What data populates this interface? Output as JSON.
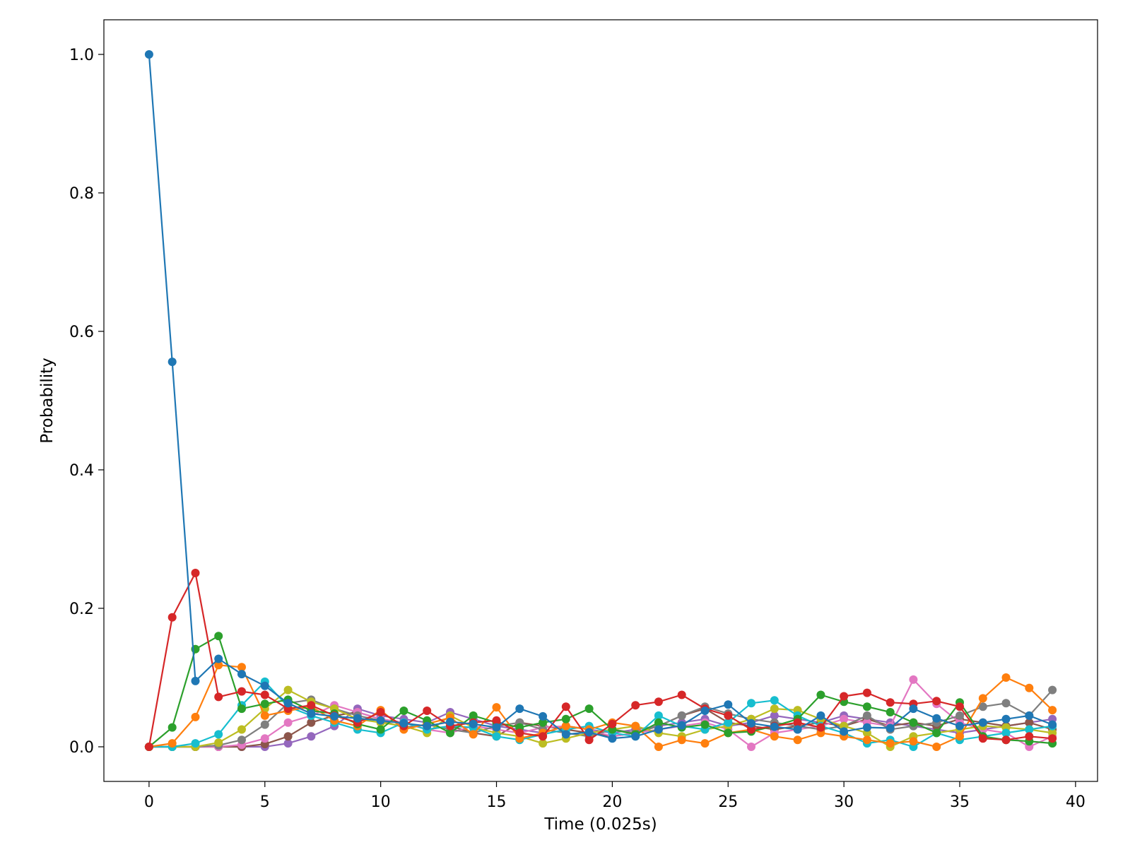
{
  "chart_data": {
    "type": "line",
    "xlabel": "Time (0.025s)",
    "ylabel": "Probability",
    "xlim": [
      -1.95,
      40.95
    ],
    "ylim": [
      -0.05,
      1.05
    ],
    "xticks": [
      0,
      5,
      10,
      15,
      20,
      25,
      30,
      35,
      40
    ],
    "xtick_labels": [
      "0",
      "5",
      "10",
      "15",
      "20",
      "25",
      "30",
      "35",
      "40"
    ],
    "yticks": [
      0.0,
      0.2,
      0.4,
      0.6,
      0.8,
      1.0
    ],
    "ytick_labels": [
      "0.0",
      "0.2",
      "0.4",
      "0.6",
      "0.8",
      "1.0"
    ],
    "grid": false,
    "legend": "none",
    "markers": true,
    "x": [
      0,
      1,
      2,
      3,
      4,
      5,
      6,
      7,
      8,
      9,
      10,
      11,
      12,
      13,
      14,
      15,
      16,
      17,
      18,
      19,
      20,
      21,
      22,
      23,
      24,
      25,
      26,
      27,
      28,
      29,
      30,
      31,
      32,
      33,
      34,
      35,
      36,
      37,
      38,
      39
    ],
    "series": [
      {
        "color": "#1f77b4",
        "values": [
          1.0,
          0.556,
          0.095,
          0.127,
          0.105,
          0.088,
          0.063,
          0.048,
          0.044,
          0.041,
          0.038,
          0.034,
          0.03,
          0.036,
          0.033,
          0.028,
          0.055,
          0.044,
          0.018,
          0.021,
          0.012,
          0.015,
          0.025,
          0.031,
          0.052,
          0.061,
          0.034,
          0.029,
          0.025,
          0.045,
          0.022,
          0.028,
          0.027,
          0.055,
          0.041,
          0.03,
          0.035,
          0.04,
          0.045,
          0.032
        ]
      },
      {
        "color": "#d62728",
        "values": [
          0.0,
          0.187,
          0.251,
          0.072,
          0.08,
          0.075,
          0.055,
          0.06,
          0.045,
          0.035,
          0.05,
          0.03,
          0.052,
          0.03,
          0.035,
          0.038,
          0.02,
          0.015,
          0.058,
          0.01,
          0.033,
          0.06,
          0.065,
          0.075,
          0.055,
          0.045,
          0.025,
          0.03,
          0.035,
          0.028,
          0.073,
          0.078,
          0.064,
          0.062,
          0.066,
          0.058,
          0.012,
          0.01,
          0.015,
          0.012
        ]
      },
      {
        "color": "#2ca02c",
        "values": [
          0.0,
          0.028,
          0.141,
          0.16,
          0.055,
          0.062,
          0.068,
          0.052,
          0.048,
          0.033,
          0.025,
          0.052,
          0.038,
          0.02,
          0.045,
          0.035,
          0.028,
          0.035,
          0.04,
          0.055,
          0.025,
          0.018,
          0.035,
          0.028,
          0.032,
          0.02,
          0.022,
          0.03,
          0.04,
          0.075,
          0.065,
          0.058,
          0.05,
          0.035,
          0.02,
          0.064,
          0.015,
          0.01,
          0.008,
          0.005
        ]
      },
      {
        "color": "#ff7f0e",
        "values": [
          0.0,
          0.005,
          0.043,
          0.118,
          0.115,
          0.045,
          0.052,
          0.058,
          0.038,
          0.03,
          0.053,
          0.025,
          0.033,
          0.042,
          0.018,
          0.057,
          0.012,
          0.02,
          0.03,
          0.025,
          0.035,
          0.03,
          0.0,
          0.01,
          0.005,
          0.02,
          0.025,
          0.015,
          0.01,
          0.02,
          0.015,
          0.01,
          0.005,
          0.008,
          0.0,
          0.015,
          0.07,
          0.1,
          0.085,
          0.053
        ]
      },
      {
        "color": "#17becf",
        "values": [
          0.0,
          0.0,
          0.005,
          0.018,
          0.06,
          0.094,
          0.058,
          0.045,
          0.035,
          0.025,
          0.02,
          0.035,
          0.025,
          0.03,
          0.028,
          0.015,
          0.01,
          0.018,
          0.025,
          0.03,
          0.02,
          0.015,
          0.045,
          0.03,
          0.025,
          0.035,
          0.063,
          0.067,
          0.045,
          0.03,
          0.02,
          0.005,
          0.01,
          0.0,
          0.02,
          0.01,
          0.015,
          0.02,
          0.025,
          0.03
        ]
      },
      {
        "color": "#bcbd22",
        "values": [
          0.0,
          0.0,
          0.0,
          0.006,
          0.025,
          0.055,
          0.082,
          0.065,
          0.055,
          0.04,
          0.035,
          0.03,
          0.02,
          0.045,
          0.028,
          0.02,
          0.015,
          0.005,
          0.012,
          0.02,
          0.025,
          0.03,
          0.02,
          0.015,
          0.025,
          0.03,
          0.04,
          0.055,
          0.053,
          0.04,
          0.03,
          0.02,
          0.0,
          0.015,
          0.02,
          0.025,
          0.03,
          0.028,
          0.025,
          0.02
        ]
      },
      {
        "color": "#7f7f7f",
        "values": [
          0.0,
          0.0,
          0.0,
          0.002,
          0.01,
          0.032,
          0.063,
          0.068,
          0.055,
          0.045,
          0.038,
          0.028,
          0.032,
          0.025,
          0.02,
          0.03,
          0.035,
          0.025,
          0.02,
          0.015,
          0.025,
          0.02,
          0.03,
          0.045,
          0.058,
          0.048,
          0.04,
          0.035,
          0.03,
          0.025,
          0.03,
          0.045,
          0.025,
          0.03,
          0.035,
          0.045,
          0.058,
          0.063,
          0.045,
          0.082
        ]
      },
      {
        "color": "#e377c2",
        "values": [
          0.0,
          0.0,
          0.0,
          0.0,
          0.003,
          0.012,
          0.035,
          0.045,
          0.06,
          0.05,
          0.04,
          0.035,
          0.025,
          0.02,
          0.03,
          0.025,
          0.02,
          0.028,
          0.03,
          0.025,
          0.015,
          0.02,
          0.025,
          0.03,
          0.035,
          0.025,
          0.0,
          0.02,
          0.025,
          0.03,
          0.04,
          0.035,
          0.03,
          0.097,
          0.062,
          0.035,
          0.025,
          0.02,
          0.0,
          0.015
        ]
      },
      {
        "color": "#8c564b",
        "values": [
          0.0,
          0.0,
          0.0,
          0.0,
          0.0,
          0.004,
          0.015,
          0.035,
          0.045,
          0.05,
          0.04,
          0.035,
          0.025,
          0.03,
          0.02,
          0.015,
          0.035,
          0.03,
          0.025,
          0.02,
          0.015,
          0.02,
          0.03,
          0.045,
          0.055,
          0.035,
          0.03,
          0.025,
          0.03,
          0.035,
          0.03,
          0.04,
          0.03,
          0.035,
          0.03,
          0.04,
          0.035,
          0.03,
          0.035,
          0.025
        ]
      },
      {
        "color": "#9467bd",
        "values": [
          0.0,
          0.0,
          0.0,
          0.0,
          0.0,
          0.0,
          0.005,
          0.015,
          0.03,
          0.055,
          0.045,
          0.04,
          0.035,
          0.05,
          0.04,
          0.03,
          0.025,
          0.02,
          0.03,
          0.025,
          0.02,
          0.025,
          0.03,
          0.035,
          0.04,
          0.03,
          0.035,
          0.045,
          0.04,
          0.035,
          0.045,
          0.04,
          0.035,
          0.03,
          0.025,
          0.02,
          0.025,
          0.03,
          0.035,
          0.04
        ]
      }
    ]
  }
}
